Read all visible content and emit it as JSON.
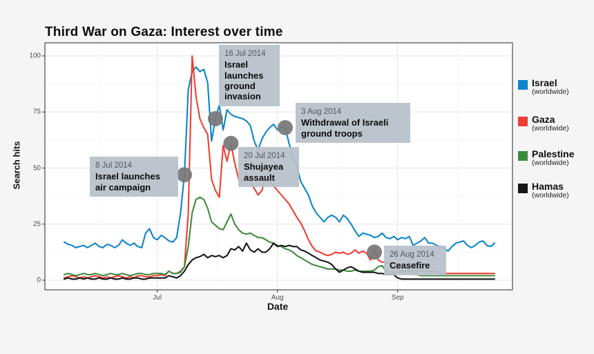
{
  "title": "Third War on Gaza: Interest over time",
  "background_color": "#f5f5f6",
  "chart_data": {
    "type": "line",
    "title": "Third War on Gaza: Interest over time",
    "xlabel": "Date",
    "ylabel": "Search hits",
    "ylim": [
      0,
      100
    ],
    "grid": true,
    "legend_position": "right",
    "x_unit": "days, index 0 = 7 Jun 2014",
    "x_ticks": [
      {
        "label": "Jul",
        "day": 24
      },
      {
        "label": "Aug",
        "day": 55
      },
      {
        "label": "Sep",
        "day": 86
      }
    ],
    "x_minor_days": [
      9.5,
      39.5,
      70.5,
      101.5
    ],
    "y_ticks": [
      0,
      25,
      50,
      75,
      100
    ],
    "y_minor": [
      12.5,
      37.5,
      62.5,
      87.5
    ],
    "panel_bg": "#ffffff",
    "grid_major_color": "#e9e9e9",
    "grid_minor_color": "#f5f5f5",
    "panel_border_color": "#4a4a4a",
    "marker_color": "#767676",
    "annotation_box_color": "#b7c1c9",
    "series": [
      {
        "name": "Israel",
        "sublabel": "(worldwide)",
        "color": "#0d83cb",
        "values": [
          17,
          16,
          15.5,
          14.5,
          15,
          15.5,
          14.5,
          15.5,
          16.5,
          15,
          14.5,
          16,
          15.5,
          14.5,
          15.5,
          18,
          16.5,
          15.5,
          16.5,
          15,
          14.5,
          21,
          23,
          19,
          18,
          20,
          19,
          17.5,
          17,
          19,
          30,
          47,
          85,
          93,
          95,
          93,
          94,
          88,
          62,
          72,
          78,
          67,
          76,
          74,
          73,
          72.5,
          72,
          71,
          69,
          62,
          58,
          63,
          66,
          68,
          69.5,
          67,
          68.5,
          68,
          61,
          55,
          51,
          44,
          41,
          38,
          33,
          30,
          28,
          26,
          28,
          29,
          28,
          26,
          29,
          27.5,
          25,
          22,
          19.5,
          21,
          20.5,
          20,
          19,
          19.5,
          21,
          19,
          18.5,
          19.5,
          18,
          19,
          18.5,
          19.5,
          15.5,
          16.5,
          17.5,
          19,
          16.5,
          16.5,
          15.5,
          15,
          14,
          13,
          15,
          16.5,
          17,
          17.5,
          15.5,
          14.5,
          15.5,
          17,
          17.5,
          15.5,
          15,
          16.5
        ]
      },
      {
        "name": "Gaza",
        "sublabel": "(worldwide)",
        "color": "#ef3e33",
        "values": [
          1,
          1.5,
          2,
          1.5,
          1,
          1.5,
          1,
          1.5,
          2,
          1.5,
          1,
          1.5,
          1,
          1.5,
          2,
          1.5,
          1,
          1.5,
          1,
          2,
          2,
          1.5,
          1.5,
          2,
          2,
          2.5,
          2,
          4,
          3,
          3,
          4,
          6,
          30,
          100,
          82,
          72,
          68,
          65,
          45,
          40,
          37,
          60,
          53,
          61,
          52,
          45,
          44,
          48,
          44,
          41,
          38,
          40,
          47,
          44,
          42,
          40,
          38,
          36,
          34,
          31,
          28,
          25.5,
          22,
          18,
          15,
          13,
          12.5,
          11.5,
          11,
          11.5,
          12.5,
          12,
          12.5,
          11.5,
          12,
          13.5,
          12,
          13,
          12,
          9,
          14,
          9,
          8,
          8,
          7.5,
          5,
          5,
          4.5,
          4,
          4,
          4,
          4,
          4,
          4,
          4,
          4,
          4,
          3,
          3,
          3,
          3,
          3,
          3,
          3,
          3,
          3,
          3,
          3,
          3,
          3,
          3,
          3
        ]
      },
      {
        "name": "Palestine",
        "sublabel": "(worldwide)",
        "color": "#3d8b3d",
        "values": [
          2.5,
          3,
          2.5,
          2,
          2.5,
          3,
          2.5,
          2.5,
          3,
          2.5,
          2,
          2.5,
          3,
          2.5,
          2.5,
          3,
          2.5,
          2,
          2.5,
          3,
          3,
          2.5,
          2.5,
          3,
          3,
          3,
          2.5,
          4,
          3,
          3,
          3.5,
          6,
          15,
          30,
          36,
          37,
          36,
          32,
          26,
          24.5,
          23,
          22.5,
          26,
          29.5,
          25,
          22.5,
          21,
          20.5,
          21,
          20,
          19,
          19,
          18,
          17,
          16.5,
          15.5,
          15,
          14,
          13.5,
          12.5,
          11,
          10,
          9,
          8,
          7,
          6.5,
          6,
          5.5,
          5,
          5,
          5,
          4.5,
          4.5,
          4,
          4,
          4.5,
          4,
          4,
          4,
          4,
          4.5,
          6,
          6.5,
          4,
          3.5,
          3.5,
          3.5,
          3.5,
          4,
          4.5,
          3.5,
          2.5,
          2,
          2,
          2,
          2,
          2,
          2,
          2,
          2,
          2,
          2,
          2,
          2,
          2,
          2,
          2,
          2,
          2,
          2,
          2,
          2
        ]
      },
      {
        "name": "Hamas",
        "sublabel": "(worldwide)",
        "color": "#161616",
        "values": [
          0.5,
          1,
          0.5,
          0.5,
          1,
          0.5,
          1,
          0.5,
          0.5,
          1,
          0.5,
          0.5,
          1,
          0.5,
          0.5,
          1,
          0.5,
          0.5,
          1,
          1,
          0.5,
          0.5,
          1,
          1,
          1,
          1,
          1,
          2,
          1.5,
          1,
          2,
          4,
          7,
          9,
          10,
          10.5,
          11.5,
          10,
          11,
          10.5,
          11,
          10,
          11,
          14,
          13.5,
          15,
          13,
          16.5,
          13.5,
          12.5,
          14,
          12.5,
          12.5,
          14,
          16.5,
          15,
          15.5,
          15,
          15.5,
          15,
          15,
          13.5,
          13,
          12,
          11,
          10,
          9,
          8.5,
          8,
          7,
          5,
          3.5,
          4.5,
          5.5,
          6,
          5,
          4,
          3.5,
          3.5,
          3.5,
          3.5,
          3,
          3,
          2.5,
          2.5,
          2.5,
          1,
          0.5,
          0.5,
          0.5,
          0.5,
          0.5,
          0.5,
          0.5,
          0.5,
          0.5,
          0.5,
          0.5,
          0.5,
          0.5,
          0.5,
          0.5,
          0.5,
          0.5,
          0.5,
          0.5,
          0.5,
          0.5,
          0.5,
          0.5,
          0.5,
          0.5
        ]
      }
    ],
    "annotations": [
      {
        "date": "8 Jul 2014",
        "text": "Israel launches air campaign",
        "marker_day": 31,
        "marker_value": 47
      },
      {
        "date": "16 Jul 2014",
        "text": "Israel launches ground invasion",
        "marker_day": 39,
        "marker_value": 72
      },
      {
        "date": "20 Jul 2014",
        "text": "Shujayea assault",
        "marker_day": 43,
        "marker_value": 61
      },
      {
        "date": "3 Aug 2014",
        "text": "Withdrawal of Israeli ground troops",
        "marker_day": 57,
        "marker_value": 68
      },
      {
        "date": "26 Aug 2014",
        "text": "Ceasefire",
        "marker_day": 80,
        "marker_value": 12.5
      }
    ]
  }
}
